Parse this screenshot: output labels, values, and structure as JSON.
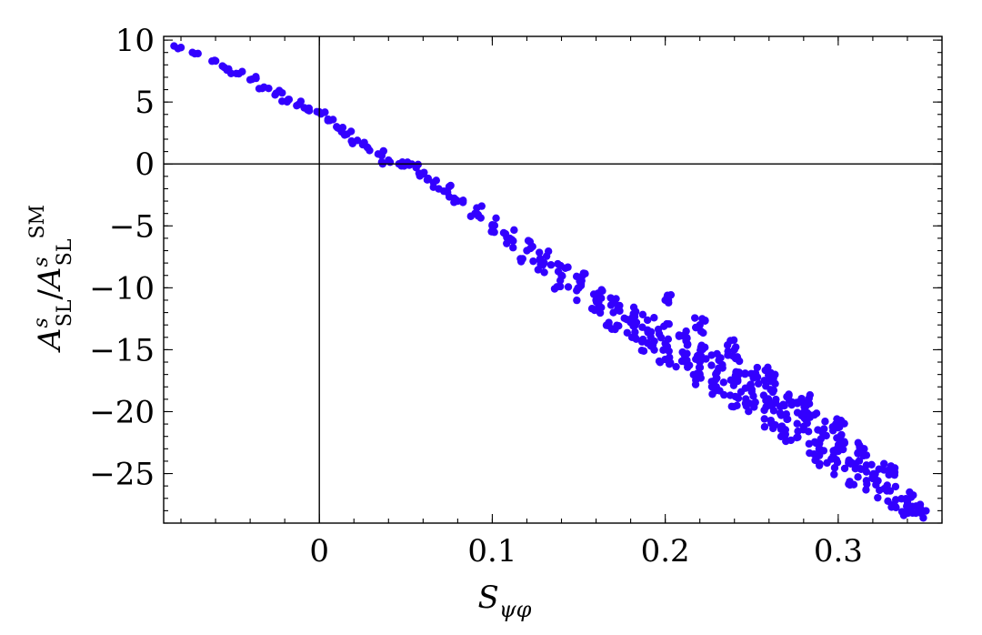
{
  "chart_data": {
    "type": "scatter",
    "title": "",
    "xlabel": {
      "base": "S",
      "sub": "ψφ"
    },
    "ylabel": {
      "num_base": "A",
      "num_sup": "s",
      "num_sub": "SL",
      "slash": "/",
      "den_base": "A",
      "den_sup_s": "s",
      "den_sub": "SL",
      "den_sup_sm": "SM"
    },
    "xlim": [
      -0.09,
      0.36
    ],
    "ylim": [
      -29,
      10.3
    ],
    "xticks": [
      0,
      0.1,
      0.2,
      0.3
    ],
    "xtick_labels": [
      "0",
      "0.1",
      "0.2",
      "0.3"
    ],
    "yticks": [
      10,
      5,
      0,
      -5,
      -10,
      -15,
      -20,
      -25
    ],
    "ytick_labels": [
      "10",
      "5",
      "0",
      "−5",
      "−10",
      "−15",
      "−20",
      "−25"
    ],
    "x_minor_step": 0.02,
    "y_minor_step": 1,
    "grid": false,
    "zero_lines": true,
    "marker_color": "#3300ff",
    "series": [
      {
        "x": [
          -0.08,
          -0.072,
          -0.062,
          -0.055,
          -0.048,
          -0.04,
          -0.032,
          -0.025,
          -0.018,
          -0.012,
          -0.006,
          0.0,
          0.005,
          0.01,
          0.016,
          0.022,
          0.028,
          0.034,
          0.04,
          0.046,
          0.052,
          0.056,
          0.06,
          0.066,
          0.072,
          0.08,
          0.09,
          0.1,
          0.11,
          0.12,
          0.13,
          0.14,
          0.15,
          0.16,
          0.17,
          0.18,
          0.19,
          0.2,
          0.21,
          0.22,
          0.23,
          0.24,
          0.25,
          0.26,
          0.27,
          0.28,
          0.29,
          0.3,
          0.31,
          0.32,
          0.33,
          0.34,
          0.348,
          0.2,
          0.22,
          0.24,
          0.26,
          0.28,
          0.3,
          0.315,
          0.33
        ],
        "y": [
          9.4,
          8.9,
          8.3,
          7.8,
          7.3,
          6.8,
          6.2,
          5.7,
          5.2,
          4.8,
          4.5,
          4.2,
          3.5,
          3.0,
          2.4,
          1.9,
          1.3,
          0.8,
          0.3,
          0.0,
          -0.1,
          -0.3,
          -0.8,
          -1.5,
          -2.2,
          -3.0,
          -4.0,
          -5.0,
          -6.0,
          -7.0,
          -8.0,
          -9.0,
          -10.0,
          -11.0,
          -12.0,
          -12.8,
          -13.6,
          -14.5,
          -15.2,
          -16.0,
          -16.8,
          -17.6,
          -18.4,
          -19.2,
          -20.2,
          -21.2,
          -22.2,
          -23.2,
          -24.2,
          -25.4,
          -26.4,
          -27.3,
          -28.2,
          -11.0,
          -13.0,
          -15.0,
          -17.2,
          -19.3,
          -21.3,
          -23.0,
          -24.6
        ],
        "spread": [
          0.15,
          0.2,
          0.2,
          0.25,
          0.25,
          0.3,
          0.3,
          0.3,
          0.3,
          0.3,
          0.3,
          0.3,
          0.3,
          0.3,
          0.3,
          0.3,
          0.3,
          0.3,
          0.3,
          0.3,
          0.3,
          0.3,
          0.3,
          0.4,
          0.5,
          0.5,
          0.6,
          0.7,
          0.8,
          0.9,
          1.0,
          1.1,
          1.2,
          1.3,
          1.4,
          1.5,
          1.6,
          1.7,
          1.8,
          1.9,
          2.0,
          2.1,
          2.2,
          2.2,
          2.2,
          2.2,
          2.2,
          2.0,
          1.8,
          1.6,
          1.4,
          1.2,
          0.8,
          0.6,
          0.8,
          0.8,
          0.8,
          0.8,
          0.8,
          0.6,
          0.5
        ]
      }
    ]
  }
}
